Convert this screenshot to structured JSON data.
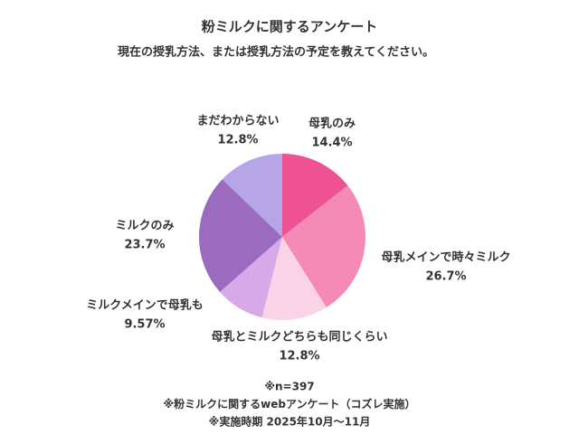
{
  "chart_data": {
    "type": "pie",
    "title": "粉ミルクに関するアンケート",
    "subtitle": "現在の授乳方法、または授乳方法の予定を教えてください。",
    "categories": [
      "母乳のみ",
      "母乳メインで時々ミルク",
      "母乳とミルクどちらも同じくらい",
      "ミルクメインで母乳も",
      "ミルクのみ",
      "まだわからない"
    ],
    "values": [
      14.4,
      26.7,
      12.8,
      9.57,
      23.7,
      12.8
    ],
    "value_labels": [
      "14.4%",
      "26.7%",
      "12.8%",
      "9.57%",
      "23.7%",
      "12.8%"
    ],
    "colors": [
      "#ee5293",
      "#f48ab5",
      "#fbd3e6",
      "#d8a9e8",
      "#9b6bbf",
      "#b6a6e8"
    ],
    "notes": [
      "※n=397",
      "※粉ミルクに関するwebアンケート（コズレ実施）",
      "※実施時期 2025年10月～11月"
    ]
  }
}
